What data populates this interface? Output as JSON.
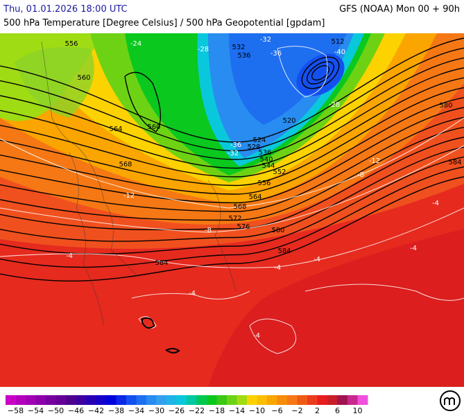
{
  "header": {
    "valid_time": "Thu, 01.01.2026 18:00 UTC",
    "model": "GFS (NOAA) Mon 00 + 90h",
    "title": "500 hPa Temperature [Degree Celsius] / 500 hPa Geopotential [gpdam]"
  },
  "map": {
    "geopotential_labels": [
      "556",
      "560",
      "564",
      "560",
      "568",
      "532",
      "536",
      "512",
      "520",
      "524",
      "528",
      "536",
      "540",
      "544",
      "552",
      "556",
      "564",
      "568",
      "572",
      "576",
      "580",
      "584",
      "584",
      "580",
      "584"
    ],
    "temperature_labels": [
      "-40",
      "-36",
      "-32",
      "-28",
      "-28",
      "-24",
      "-36",
      "-32",
      "-12",
      "-8",
      "-4",
      "-4",
      "-4",
      "-4",
      "-4",
      "-4",
      "-4",
      "-8",
      "-12"
    ]
  },
  "colorbar": {
    "labels": [
      "−58",
      "−54",
      "−50",
      "−46",
      "−42",
      "−38",
      "−34",
      "−30",
      "−26",
      "−22",
      "−18",
      "−14",
      "−10",
      "−6",
      "−2",
      "2",
      "6",
      "10"
    ],
    "colors": [
      "#c800c8",
      "#b400be",
      "#a000b4",
      "#8c00aa",
      "#7800a0",
      "#640096",
      "#50008c",
      "#3c00a0",
      "#2800b4",
      "#1400c8",
      "#0000dc",
      "#0a28e6",
      "#1450f0",
      "#1e6ef0",
      "#288cf0",
      "#32a0f0",
      "#1eb4e6",
      "#0ac8dc",
      "#00c8a0",
      "#00c850",
      "#0ac81e",
      "#3cc814",
      "#6ed214",
      "#a0dc14",
      "#fcd200",
      "#fcbe00",
      "#faa500",
      "#f58c0a",
      "#f57814",
      "#f05a14",
      "#eb3c1e",
      "#e61e1e",
      "#c81e28",
      "#a01450",
      "#c8288c",
      "#f050dc"
    ]
  }
}
